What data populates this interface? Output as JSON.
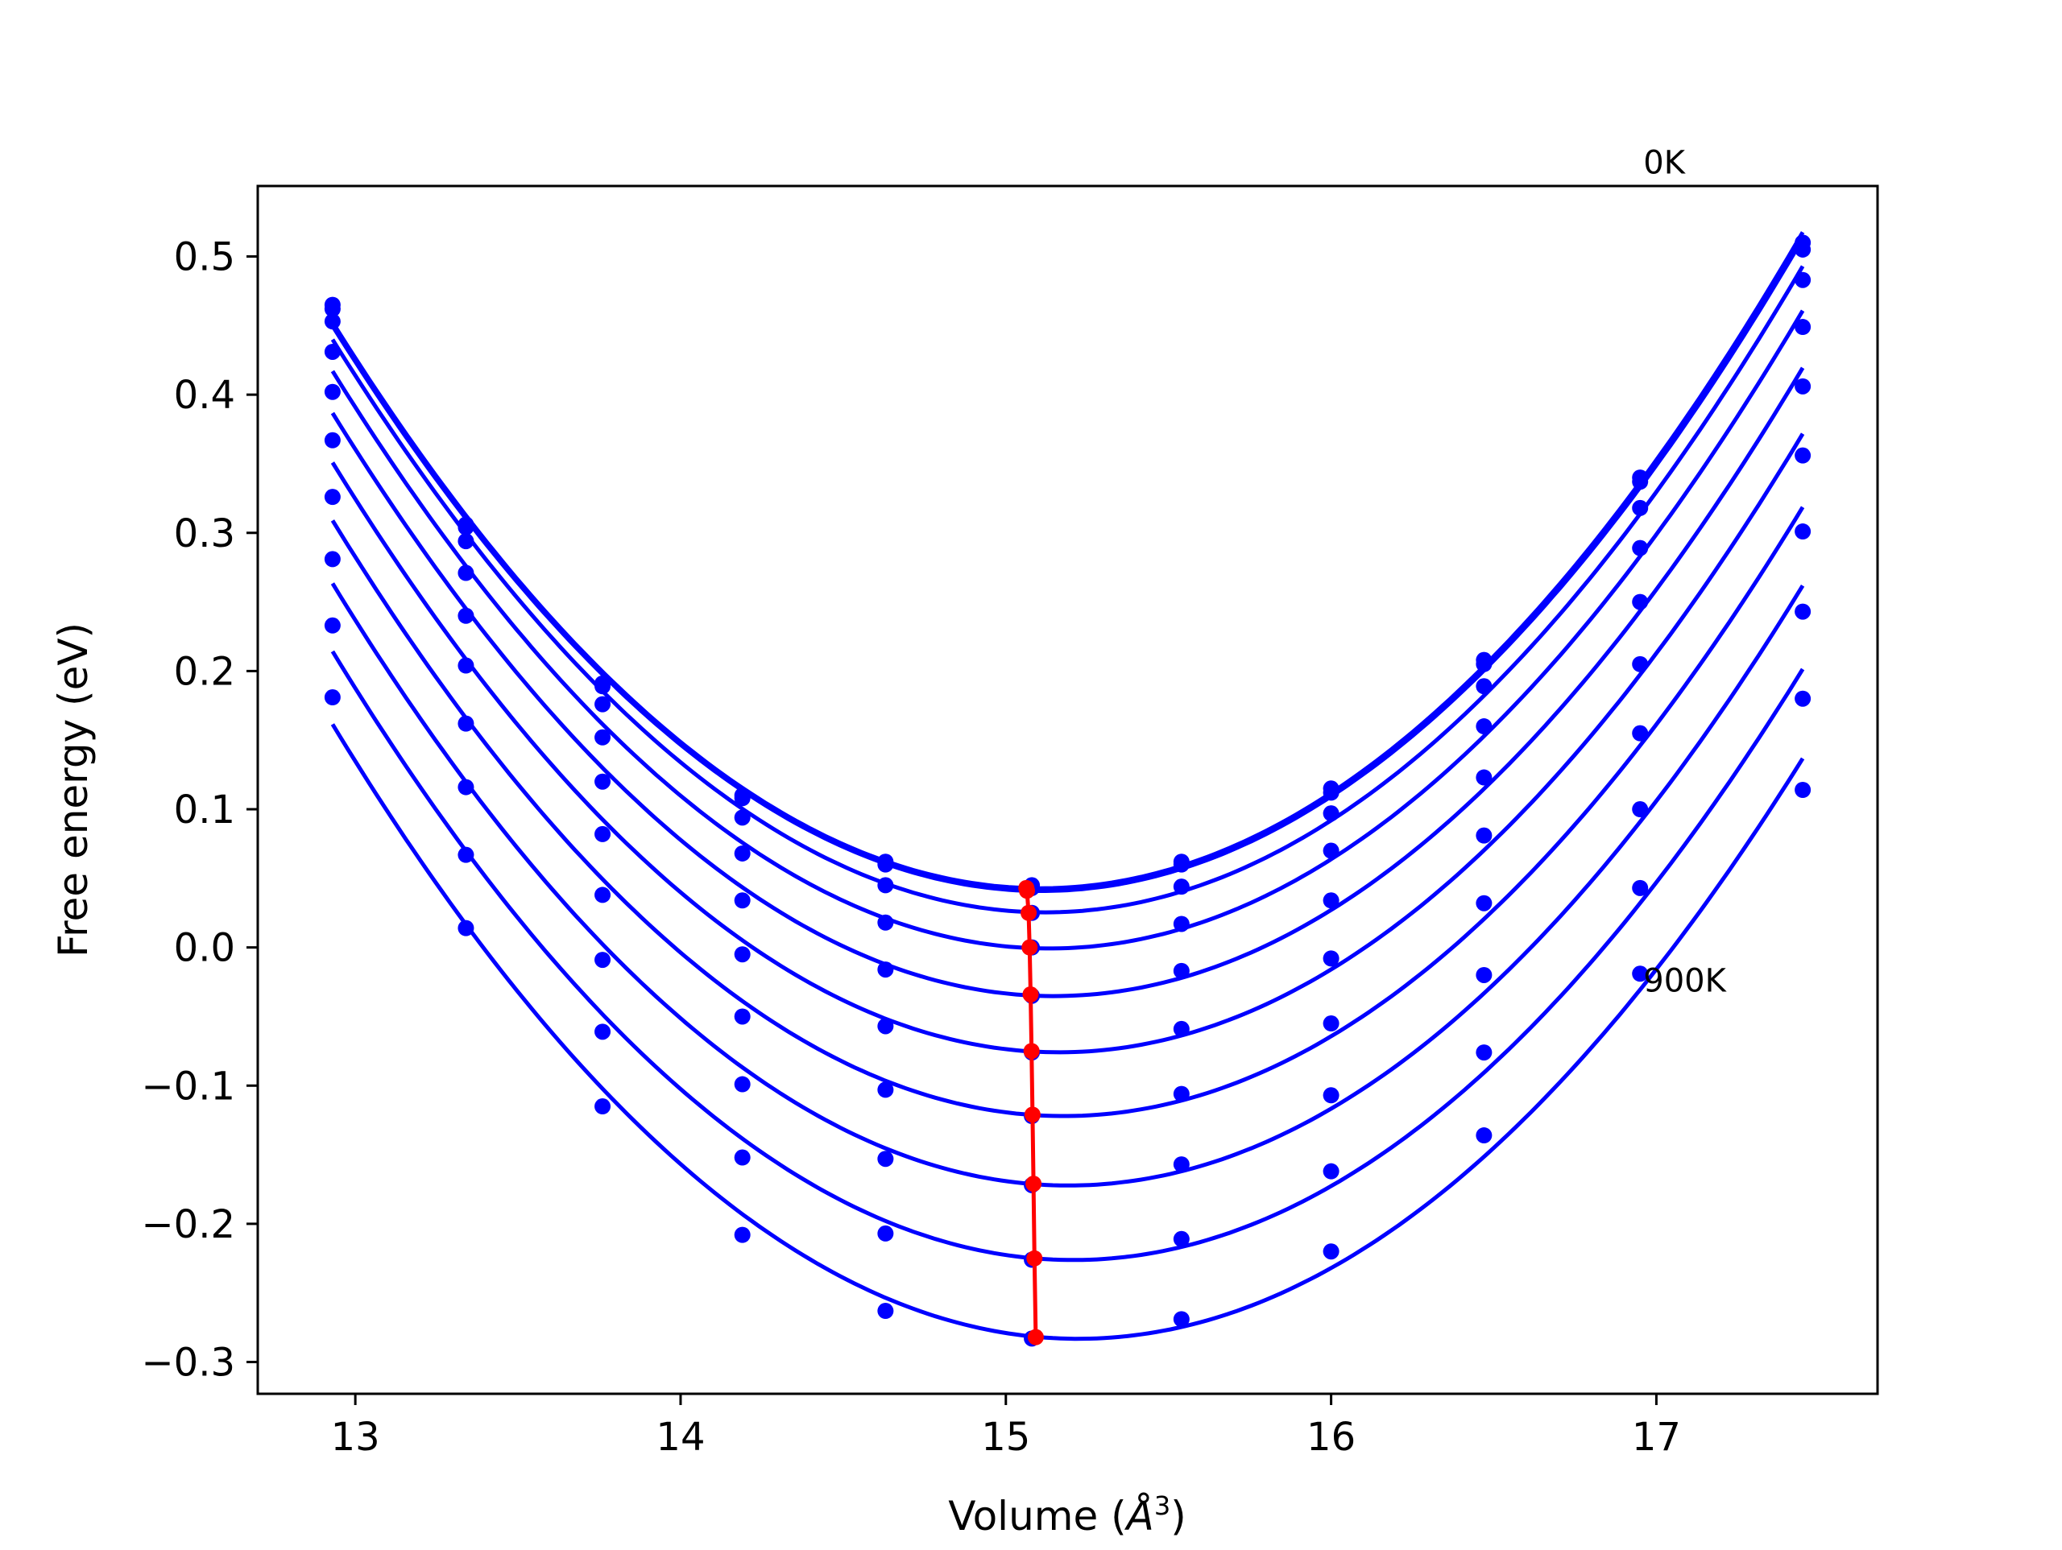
{
  "chart_data": {
    "type": "line",
    "title": "",
    "xlabel": "Volume (",
    "xlabel_symbol": "Å",
    "xlabel_exponent": "3",
    "xlabel_close": ")",
    "ylabel": "Free energy (eV)",
    "xlim": [
      12.7,
      17.68
    ],
    "ylim": [
      -0.323,
      0.551
    ],
    "xticks": [
      13,
      14,
      15,
      16,
      17
    ],
    "xtick_labels": [
      "13",
      "14",
      "15",
      "16",
      "17"
    ],
    "yticks": [
      -0.3,
      -0.2,
      -0.1,
      0.0,
      0.1,
      0.2,
      0.3,
      0.4,
      0.5
    ],
    "ytick_labels": [
      "−0.3",
      "−0.2",
      "−0.1",
      "0.0",
      "0.1",
      "0.2",
      "0.3",
      "0.4",
      "0.5"
    ],
    "grid": false,
    "legend": "none",
    "x": [
      12.93,
      13.34,
      13.76,
      14.19,
      14.63,
      15.08,
      15.54,
      16.0,
      16.47,
      16.95,
      17.45
    ],
    "series": [
      {
        "values": [
          0.465,
          0.306,
          0.191,
          0.11,
          0.062,
          0.045,
          0.062,
          0.115,
          0.208,
          0.34,
          0.51
        ]
      },
      {
        "values": [
          0.462,
          0.304,
          0.189,
          0.108,
          0.06,
          0.043,
          0.06,
          0.112,
          0.205,
          0.337,
          0.505
        ]
      },
      {
        "values": [
          0.453,
          0.294,
          0.176,
          0.094,
          0.045,
          0.025,
          0.044,
          0.097,
          0.189,
          0.318,
          0.483
        ]
      },
      {
        "values": [
          0.431,
          0.271,
          0.152,
          0.068,
          0.018,
          0.0,
          0.017,
          0.07,
          0.16,
          0.289,
          0.449
        ]
      },
      {
        "values": [
          0.402,
          0.24,
          0.12,
          0.034,
          -0.016,
          -0.035,
          -0.017,
          0.034,
          0.123,
          0.25,
          0.406
        ]
      },
      {
        "values": [
          0.367,
          0.204,
          0.082,
          -0.005,
          -0.057,
          -0.076,
          -0.059,
          -0.008,
          0.081,
          0.205,
          0.356
        ]
      },
      {
        "values": [
          0.326,
          0.162,
          0.038,
          -0.05,
          -0.103,
          -0.122,
          -0.106,
          -0.055,
          0.032,
          0.155,
          0.301
        ]
      },
      {
        "values": [
          0.281,
          0.116,
          -0.009,
          -0.099,
          -0.153,
          -0.172,
          -0.157,
          -0.107,
          -0.02,
          0.1,
          0.243
        ]
      },
      {
        "values": [
          0.233,
          0.067,
          -0.061,
          -0.152,
          -0.207,
          -0.226,
          -0.211,
          -0.162,
          -0.076,
          0.043,
          0.18
        ]
      },
      {
        "values": [
          0.181,
          0.014,
          -0.115,
          -0.208,
          -0.263,
          -0.283,
          -0.269,
          -0.22,
          -0.136,
          -0.019,
          0.114
        ]
      }
    ],
    "minima_curve": {
      "x": [
        15.063,
        15.065,
        15.07,
        15.073,
        15.076,
        15.079,
        15.082,
        15.085,
        15.088,
        15.092
      ],
      "y": [
        0.043,
        0.041,
        0.025,
        0.0,
        -0.034,
        -0.075,
        -0.121,
        -0.171,
        -0.225,
        -0.282
      ]
    },
    "annotations": [
      {
        "text": "0K",
        "x": 16.96,
        "y": 0.56
      },
      {
        "text": "900K",
        "x": 16.96,
        "y": -0.032
      }
    ],
    "colors": {
      "series": "#0000ff",
      "minima": "#ff0000",
      "axes": "#000000"
    }
  }
}
